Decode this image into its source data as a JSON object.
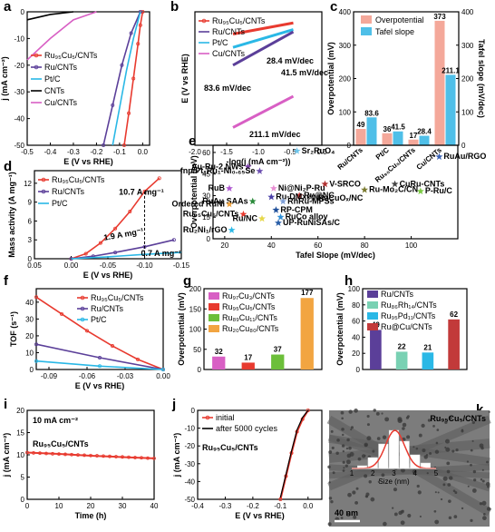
{
  "colors": {
    "ru95cu5": "#e83a2f",
    "ru": "#5b3f99",
    "ptc": "#2ab8e6",
    "cnts": "#000000",
    "cu": "#d85fc4",
    "bar_overpotential": "#f4a89a",
    "bar_tafel": "#4fbfe8"
  },
  "panel_labels": [
    "a",
    "b",
    "c",
    "d",
    "e",
    "f",
    "g",
    "h",
    "i",
    "j",
    "k"
  ],
  "chart_data": [
    {
      "panel": "a",
      "type": "line",
      "xlabel": "E (V vs RHE)",
      "ylabel": "j (mA cm⁻²)",
      "xlim": [
        -0.5,
        0.03
      ],
      "ylim": [
        -50,
        0
      ],
      "xticks": [
        -0.5,
        -0.4,
        -0.3,
        -0.2,
        -0.1,
        0.0
      ],
      "yticks": [
        0,
        -10,
        -20,
        -30,
        -40,
        -50
      ],
      "legend": [
        "Ru₉₅Cu₅/CNTs",
        "Ru/CNTs",
        "Pt/C",
        "CNTs",
        "Cu/CNTs"
      ],
      "series": [
        {
          "name": "Ru₉₅Cu₅/CNTs",
          "x": [
            0.0,
            -0.01,
            -0.02,
            -0.04,
            -0.06,
            -0.08
          ],
          "y": [
            0,
            -5,
            -12,
            -25,
            -38,
            -50
          ]
        },
        {
          "name": "Ru/CNTs",
          "x": [
            -0.01,
            -0.05,
            -0.09,
            -0.13,
            -0.17
          ],
          "y": [
            0,
            -8,
            -20,
            -35,
            -50
          ]
        },
        {
          "name": "Pt/C",
          "x": [
            -0.01,
            -0.04,
            -0.07,
            -0.1,
            -0.13
          ],
          "y": [
            0,
            -10,
            -22,
            -36,
            -50
          ]
        },
        {
          "name": "CNTs",
          "x": [
            -0.3,
            -0.4,
            -0.5
          ],
          "y": [
            0,
            -1,
            -3
          ]
        },
        {
          "name": "Cu/CNTs",
          "x": [
            -0.2,
            -0.3,
            -0.4,
            -0.5
          ],
          "y": [
            0,
            -3,
            -10,
            -18
          ]
        }
      ]
    },
    {
      "panel": "b",
      "type": "line",
      "xlabel": "-log(j (mA cm⁻²))",
      "ylabel": "E (V vs RHE)",
      "xlim": [
        -2.0,
        0.0
      ],
      "ylim": [
        -0.3,
        0.0
      ],
      "xticks": [
        -2.0,
        -1.5,
        -1.0,
        -0.5,
        0.0
      ],
      "legend": [
        "Ru₉₅Cu₅/CNTs",
        "Ru/CNTs",
        "Pt/C",
        "Cu/CNTs"
      ],
      "annotations": [
        "28.4 mV/dec",
        "41.5 mV/dec",
        "83.6 mV/dec",
        "211.1 mV/dec"
      ],
      "series": [
        {
          "name": "Ru₉₅Cu₅/CNTs",
          "x": [
            -1.4,
            -0.45
          ],
          "y": [
            -0.05,
            -0.025
          ]
        },
        {
          "name": "Pt/C",
          "x": [
            -1.4,
            -0.45
          ],
          "y": [
            -0.08,
            -0.04
          ]
        },
        {
          "name": "Ru/CNTs",
          "x": [
            -1.4,
            -0.45
          ],
          "y": [
            -0.12,
            -0.045
          ]
        },
        {
          "name": "Cu/CNTs",
          "x": [
            -1.4,
            -0.45
          ],
          "y": [
            -0.26,
            -0.19
          ]
        }
      ]
    },
    {
      "panel": "c",
      "type": "bar",
      "ylabel": "Overpotential (mV)",
      "ylabel2": "Tafel slope (mV/dec)",
      "ylim": [
        0,
        400
      ],
      "ylim2": [
        0,
        400
      ],
      "legend": [
        "Overpotential",
        "Tafel slope"
      ],
      "categories": [
        "Ru/CNTs",
        "Pt/C",
        "Ru₉₅Cu₅/CNTs",
        "Cu/CNTs"
      ],
      "series": [
        {
          "name": "Overpotential",
          "values": [
            49,
            36,
            17,
            373
          ]
        },
        {
          "name": "Tafel slope",
          "values": [
            83.6,
            41.5,
            28.4,
            211.1
          ]
        }
      ]
    },
    {
      "panel": "d",
      "type": "line",
      "xlabel": "E (V vs RHE)",
      "ylabel": "Mass activity (A mg⁻¹)",
      "xlim": [
        0.05,
        -0.15
      ],
      "ylim": [
        0,
        14
      ],
      "xticks": [
        0.05,
        0.0,
        -0.05,
        -0.1,
        -0.15
      ],
      "yticks": [
        0,
        3,
        6,
        9,
        12
      ],
      "legend": [
        "Ru₉₅Cu₅/CNTs",
        "Ru/CNTs",
        "Pt/C"
      ],
      "annotations": [
        "10.7 A mg⁻¹",
        "1.9 A mg⁻¹",
        "0.7 A mg⁻¹"
      ],
      "series": [
        {
          "name": "Ru₉₅Cu₅/CNTs",
          "x": [
            0.0,
            -0.02,
            -0.04,
            -0.06,
            -0.08,
            -0.1,
            -0.12
          ],
          "y": [
            0,
            0.8,
            2.5,
            4.8,
            7.5,
            10.7,
            12.8
          ]
        },
        {
          "name": "Ru/CNTs",
          "x": [
            0.0,
            -0.03,
            -0.06,
            -0.1,
            -0.14
          ],
          "y": [
            0,
            0.4,
            1.0,
            1.9,
            3.0
          ]
        },
        {
          "name": "Pt/C",
          "x": [
            0.0,
            -0.05,
            -0.1,
            -0.15
          ],
          "y": [
            0,
            0.3,
            0.7,
            1.0
          ]
        }
      ]
    },
    {
      "panel": "e",
      "type": "scatter",
      "xlabel": "Tafel Slope (mV/dec)",
      "ylabel": "Overpotential (mV)",
      "xlim": [
        15,
        120
      ],
      "ylim": [
        0,
        65
      ],
      "xticks": [
        20,
        40,
        60,
        80,
        100
      ],
      "yticks": [
        0,
        15,
        30,
        45,
        60
      ],
      "points": [
        {
          "label": "Sr₂RuO₄",
          "x": 51,
          "y": 61,
          "color": "#6fc6ec"
        },
        {
          "label": "Au-Ru-2 NWs",
          "x": 30,
          "y": 50,
          "color": "#7a3fa8"
        },
        {
          "label": "fnp/Pt₁Ru₁-Ni₀.₆₅Se",
          "x": 35,
          "y": 47,
          "color": "#6c4fb0"
        },
        {
          "label": "RuAu/RGO",
          "x": 112,
          "y": 57,
          "color": "#3a62b4"
        },
        {
          "label": "V-SRCO",
          "x": 63,
          "y": 38,
          "color": "#b03030"
        },
        {
          "label": "CuRu-CNTs",
          "x": 93,
          "y": 38,
          "color": "#444444"
        },
        {
          "label": "Ru-Mo₂C/CN",
          "x": 80,
          "y": 34,
          "color": "#7a7a30"
        },
        {
          "label": "P-Ru/C",
          "x": 104,
          "y": 33,
          "color": "#7ac943"
        },
        {
          "label": "RuB",
          "x": 22,
          "y": 35,
          "color": "#b05ad2"
        },
        {
          "label": "Ni@Ni₂P-Ru",
          "x": 41,
          "y": 35,
          "color": "#e88ed3"
        },
        {
          "label": "Ru@NC",
          "x": 52,
          "y": 30,
          "color": "#d23a3a"
        },
        {
          "label": "Ru-DMxene",
          "x": 40,
          "y": 29,
          "color": "#4a3fa8"
        },
        {
          "label": "RuCuOₓ/NC",
          "x": 58,
          "y": 28,
          "color": "#6b6b6b"
        },
        {
          "label": "RhRu-MPSs",
          "x": 45,
          "y": 26,
          "color": "#7f9fd6"
        },
        {
          "label": "RuAu SAAs",
          "x": 32,
          "y": 26,
          "color": "#2a8a3a"
        },
        {
          "label": "Ordered RuNi",
          "x": 22,
          "y": 24,
          "color": "#f2a541"
        },
        {
          "label": "Ru₉₅Cu₅/CNTs",
          "x": 28,
          "y": 17,
          "color": "#e83a2f"
        },
        {
          "label": "RP-CPM",
          "x": 42,
          "y": 20,
          "color": "#1f4f9a"
        },
        {
          "label": "RuCo alloy",
          "x": 44,
          "y": 15,
          "color": "#2f8fd8"
        },
        {
          "label": "UP-RuNiSAs/C",
          "x": 43,
          "y": 11,
          "color": "#2a5fa8"
        },
        {
          "label": "Ru₂Ni₁/rGO",
          "x": 23,
          "y": 6,
          "color": "#2ab8e6"
        },
        {
          "label": "Ru/NC",
          "x": 36,
          "y": 14,
          "color": "#e6d84a"
        }
      ]
    },
    {
      "panel": "f",
      "type": "line",
      "xlabel": "E (V vs RHE)",
      "ylabel": "TOF (s⁻¹)",
      "xlim": [
        -0.1,
        0.0
      ],
      "ylim": [
        0,
        48
      ],
      "xticks": [
        -0.09,
        -0.06,
        -0.03,
        0.0
      ],
      "yticks": [
        0,
        10,
        20,
        30,
        40
      ],
      "legend": [
        "Ru₉₅Cu₅/CNTs",
        "Ru/CNTs",
        "Pt/C"
      ],
      "series": [
        {
          "name": "Ru₉₅Cu₅/CNTs",
          "x": [
            -0.1,
            -0.08,
            -0.06,
            -0.04,
            -0.02,
            0.0
          ],
          "y": [
            43,
            33,
            23,
            14,
            6,
            0
          ]
        },
        {
          "name": "Ru/CNTs",
          "x": [
            -0.1,
            -0.05,
            0.0
          ],
          "y": [
            15,
            7,
            0
          ]
        },
        {
          "name": "Pt/C",
          "x": [
            -0.1,
            -0.05,
            0.0
          ],
          "y": [
            5,
            2,
            0
          ]
        }
      ]
    },
    {
      "panel": "g",
      "type": "bar",
      "ylabel": "Overpotential (mV)",
      "ylim": [
        0,
        200
      ],
      "yticks": [
        0,
        50,
        100,
        150,
        200
      ],
      "legend": [
        "Ru₉₇Cu₃/CNTs",
        "Ru₉₅Cu₅/CNTs",
        "Ru₈₉Cu₁₁/CNTs",
        "Ru₂₀Cu₈₀/CNTs"
      ],
      "categories": [
        "Ru₉₇Cu₃/CNTs",
        "Ru₉₅Cu₅/CNTs",
        "Ru₈₉Cu₁₁/CNTs",
        "Ru₂₀Cu₈₀/CNTs"
      ],
      "values": [
        32,
        17,
        37,
        177
      ],
      "bar_colors": [
        "#d85fc4",
        "#e83a2f",
        "#6cbf3a",
        "#f2a541"
      ]
    },
    {
      "panel": "h",
      "type": "bar",
      "ylabel": "Overpotential (mV)",
      "ylim": [
        0,
        100
      ],
      "yticks": [
        0,
        20,
        40,
        60,
        80,
        100
      ],
      "legend": [
        "Ru/CNTs",
        "Ru₈₆Rh₁₄/CNTs",
        "Ru₉₅Pd₁₁/CNTs",
        "Ru@Cu/CNTs"
      ],
      "categories": [
        "Ru/CNTs",
        "Ru₈₆Rh₁₄/CNTs",
        "Ru₉₅Pd₁₁/CNTs",
        "Ru@Cu/CNTs"
      ],
      "values": [
        49,
        22,
        21,
        62
      ],
      "bar_colors": [
        "#5b3f99",
        "#79d1b3",
        "#2ab8e6",
        "#c23a3a"
      ]
    },
    {
      "panel": "i",
      "type": "line",
      "xlabel": "Time (h)",
      "ylabel": "j (mA cm⁻²)",
      "xlim": [
        0,
        40
      ],
      "ylim": [
        0,
        20
      ],
      "xticks": [
        0,
        10,
        20,
        30,
        40
      ],
      "yticks": [
        0,
        5,
        10,
        15,
        20
      ],
      "annotations": [
        "10 mA cm⁻²",
        "Ru₉₅Cu₅/CNTs"
      ],
      "series": [
        {
          "name": "Ru₉₅Cu₅/CNTs",
          "x": [
            0,
            10,
            20,
            30,
            40
          ],
          "y": [
            10.5,
            10.2,
            9.8,
            9.5,
            9.2
          ]
        }
      ]
    },
    {
      "panel": "j",
      "type": "line",
      "xlabel": "E (V vs RHE)",
      "ylabel": "j (mA cm⁻²)",
      "xlim": [
        -0.4,
        0.05
      ],
      "ylim": [
        -50,
        0
      ],
      "xticks": [
        -0.4,
        -0.3,
        -0.2,
        -0.1,
        0.0
      ],
      "yticks": [
        0,
        -10,
        -20,
        -30,
        -40,
        -50
      ],
      "legend": [
        "initial",
        "after 5000 cycles"
      ],
      "annotations": [
        "Ru₉₅Cu₅/CNTs"
      ],
      "series": [
        {
          "name": "initial",
          "x": [
            0.0,
            -0.02,
            -0.04,
            -0.06,
            -0.08,
            -0.1
          ],
          "y": [
            0,
            -5,
            -12,
            -24,
            -37,
            -50
          ]
        },
        {
          "name": "after 5000 cycles",
          "x": [
            0.0,
            -0.02,
            -0.04,
            -0.06,
            -0.08,
            -0.1
          ],
          "y": [
            0,
            -4,
            -11,
            -23,
            -36,
            -49
          ]
        }
      ]
    },
    {
      "panel": "k",
      "type": "bar",
      "title": "Ru₉₅Cu₅/CNTs",
      "xlabel": "Size (nm)",
      "xticks": [
        1,
        2,
        3,
        4,
        5
      ],
      "scale_bar": "40 nm",
      "histogram": {
        "bins": [
          1.5,
          2.0,
          2.5,
          3.0,
          3.5,
          4.0,
          4.5
        ],
        "counts": [
          2,
          8,
          18,
          28,
          20,
          10,
          4
        ]
      }
    }
  ]
}
